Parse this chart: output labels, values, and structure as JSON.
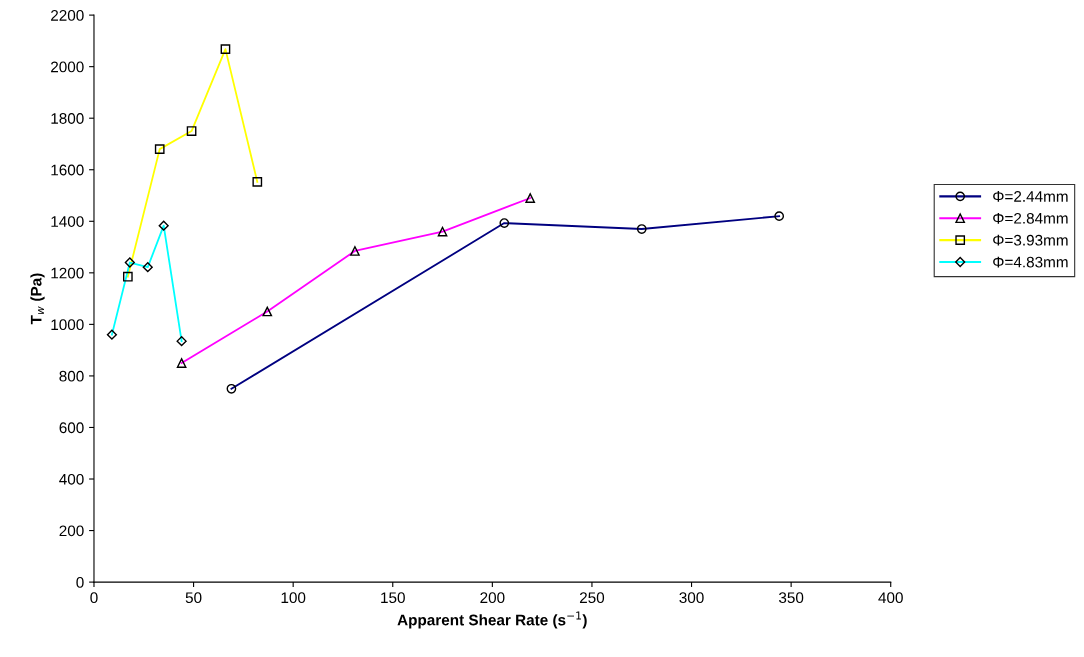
{
  "chart_data": {
    "type": "line",
    "xlabel": "Apparent Shear Rate (s$^{−1}$)",
    "ylabel": "T$_{w}$ (Pa)",
    "xlim": [
      0,
      400
    ],
    "xticks": [
      0,
      50,
      100,
      150,
      200,
      250,
      300,
      350,
      400
    ],
    "ylim": [
      0,
      2200
    ],
    "yticks": [
      0,
      200,
      400,
      600,
      800,
      1000,
      1200,
      1400,
      1600,
      1800,
      2000,
      2200
    ],
    "grid": false,
    "legend": "right",
    "line_style": "solid",
    "series": [
      {
        "name": "Φ=2.44mm",
        "color": "#000080",
        "marker": "circle",
        "x": [
          69,
          206,
          275,
          344
        ],
        "values": [
          750,
          1393,
          1370,
          1420
        ]
      },
      {
        "name": "Φ=2.84mm",
        "color": "#ff00ff",
        "marker": "triangle",
        "x": [
          44,
          87,
          131,
          175,
          219
        ],
        "values": [
          850,
          1050,
          1285,
          1360,
          1490
        ]
      },
      {
        "name": "Φ=3.93mm",
        "color": "#ffff00",
        "marker": "square",
        "x": [
          17,
          33,
          49,
          66,
          82
        ],
        "values": [
          1185,
          1680,
          1750,
          2068,
          1553
        ]
      },
      {
        "name": "Φ=4.83mm",
        "color": "#00ffff",
        "marker": "diamond",
        "x": [
          9,
          18,
          27,
          35,
          44
        ],
        "values": [
          960,
          1240,
          1222,
          1383,
          935
        ]
      }
    ]
  }
}
